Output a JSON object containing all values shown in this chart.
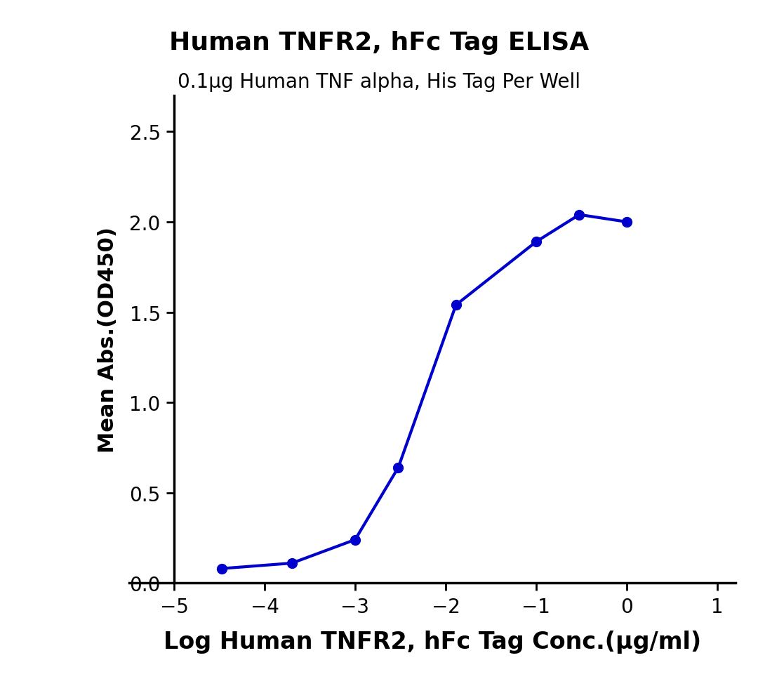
{
  "title": "Human TNFR2, hFc Tag ELISA",
  "subtitle": "0.1μg Human TNF alpha, His Tag Per Well",
  "xlabel": "Log Human TNFR2, hFc Tag Conc.(μg/ml)",
  "ylabel": "Mean Abs.(OD450)",
  "title_fontsize": 26,
  "subtitle_fontsize": 20,
  "xlabel_fontsize": 24,
  "ylabel_fontsize": 22,
  "tick_fontsize": 20,
  "line_color": "#0000CD",
  "marker_color": "#0000CD",
  "marker_size": 10,
  "line_width": 3.0,
  "xlim": [
    -5.5,
    1.2
  ],
  "ylim": [
    0.0,
    2.7
  ],
  "xticks": [
    -5,
    -4,
    -3,
    -2,
    -1,
    0,
    1
  ],
  "yticks": [
    0.0,
    0.5,
    1.0,
    1.5,
    2.0,
    2.5
  ],
  "data_x": [
    -4.477,
    -3.699,
    -3.0,
    -2.523,
    -1.886,
    -1.0,
    -0.523,
    0.0
  ],
  "data_y": [
    0.08,
    0.11,
    0.24,
    0.64,
    1.54,
    1.89,
    2.04,
    2.0
  ],
  "background_color": "#ffffff",
  "spine_linewidth": 2.5
}
